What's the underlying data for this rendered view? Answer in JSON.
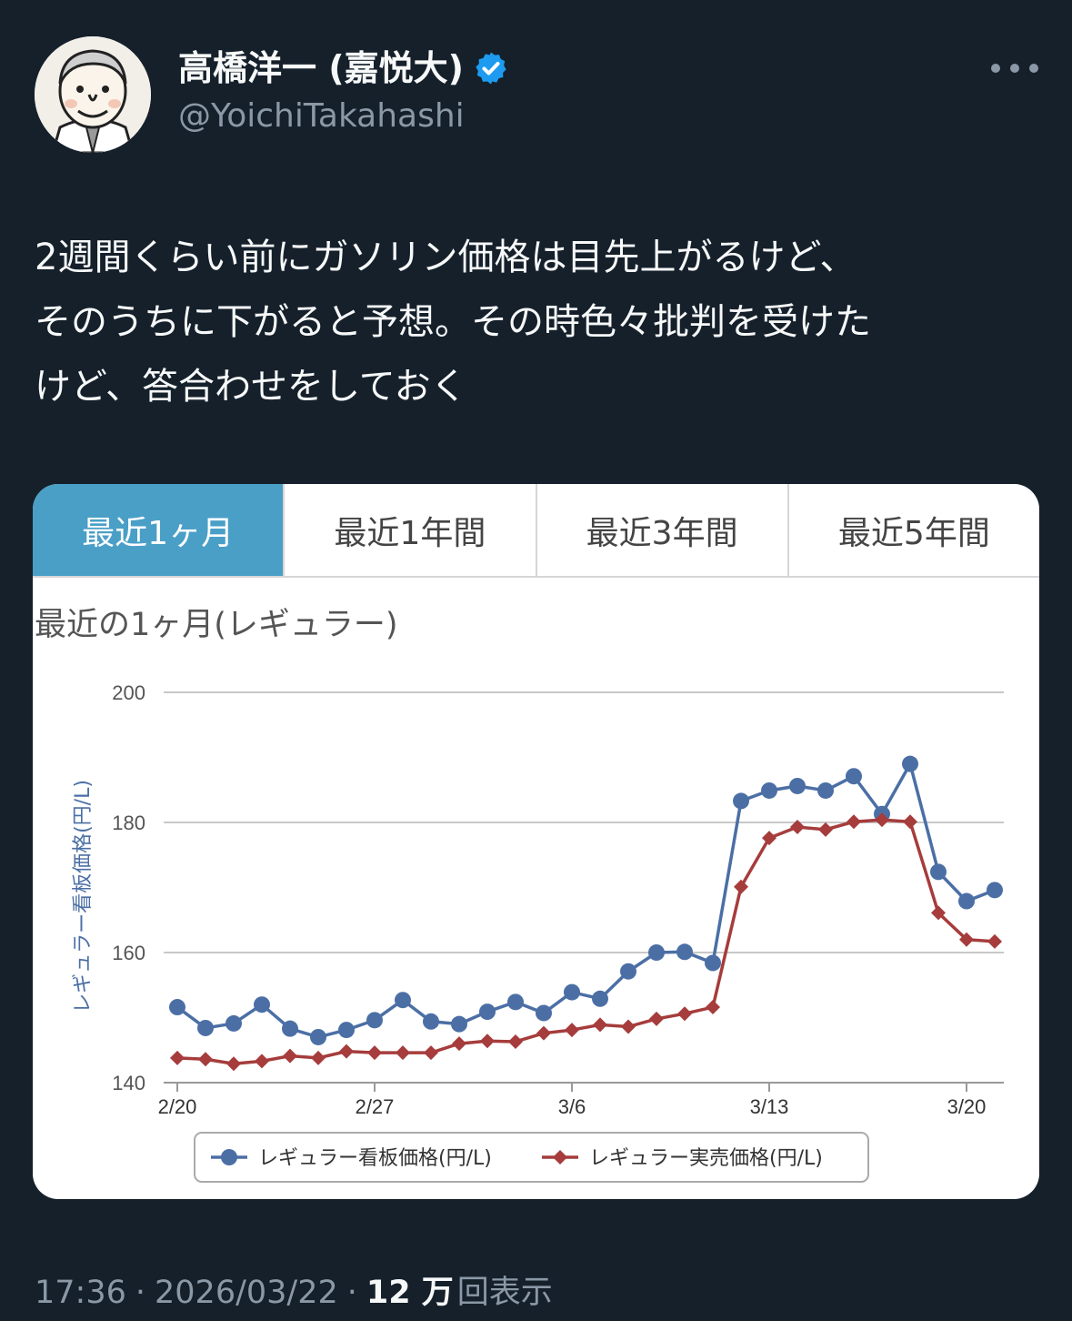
{
  "author": {
    "display_name": "高橋洋一 (嘉悦大)",
    "handle": "@YoichiTakahashi",
    "avatar_icon": "illustrated-avatar",
    "verified_icon": "verified-badge-icon",
    "verified_color": "#1d9bf0"
  },
  "tweet": {
    "text": "2週間くらい前にガソリン価格は目先上がるけど、\nそのうちに下がると予想。その時色々批判を受けた\nけど、答合わせをしておく"
  },
  "media": {
    "tabs": [
      {
        "label": "最近1ヶ月",
        "active": true
      },
      {
        "label": "最近1年間",
        "active": false
      },
      {
        "label": "最近3年間",
        "active": false
      },
      {
        "label": "最近5年間",
        "active": false
      }
    ],
    "chart_title": "最近の1ヶ月(レギュラー)"
  },
  "chart_data": {
    "type": "line",
    "ylabel": "レギュラー看板価格(円/L)",
    "ylim": [
      140,
      200
    ],
    "y_ticks": [
      "200",
      "180",
      "160",
      "140"
    ],
    "x_ticks": [
      "2/20",
      "2/27",
      "3/6",
      "3/13",
      "3/20"
    ],
    "legend_position": "bottom",
    "grid": true,
    "x": [
      "2/20",
      "2/21",
      "2/22",
      "2/23",
      "2/24",
      "2/25",
      "2/26",
      "2/27",
      "2/28",
      "3/1",
      "3/2",
      "3/3",
      "3/4",
      "3/5",
      "3/6",
      "3/7",
      "3/8",
      "3/9",
      "3/10",
      "3/11",
      "3/12",
      "3/13",
      "3/14",
      "3/15",
      "3/16",
      "3/17",
      "3/18",
      "3/19",
      "3/20",
      "3/21"
    ],
    "series": [
      {
        "name": "レギュラー看板価格(円/L)",
        "color": "#4b6fa5",
        "marker": "circle",
        "values": [
          151.6,
          148.4,
          149.1,
          152.0,
          148.3,
          147.0,
          148.1,
          149.6,
          152.7,
          149.4,
          149.0,
          150.9,
          152.4,
          150.7,
          153.9,
          152.9,
          157.1,
          160.0,
          160.1,
          158.4,
          183.3,
          184.9,
          185.6,
          184.9,
          187.1,
          181.3,
          189.0,
          172.4,
          167.9,
          169.6
        ]
      },
      {
        "name": "レギュラー実売価格(円/L)",
        "color": "#a63c3c",
        "marker": "diamond",
        "values": [
          143.8,
          143.6,
          142.9,
          143.3,
          144.1,
          143.8,
          144.8,
          144.6,
          144.6,
          144.6,
          146.0,
          146.4,
          146.3,
          147.6,
          148.1,
          148.9,
          148.6,
          149.8,
          150.6,
          151.6,
          170.1,
          177.6,
          179.3,
          178.9,
          180.1,
          180.4,
          180.1,
          166.1,
          162.0,
          161.7
        ]
      }
    ]
  },
  "footer": {
    "time": "17:36",
    "separator": "·",
    "date": "2026/03/22",
    "views_count": "12 万",
    "views_label": "回表示"
  }
}
